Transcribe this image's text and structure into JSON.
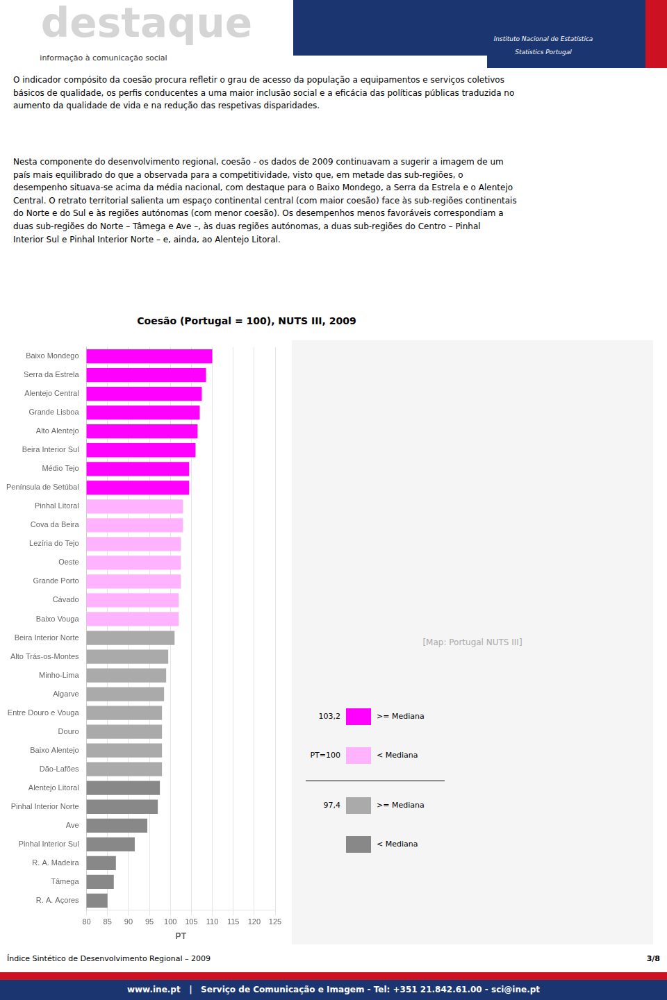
{
  "chart_data": {
    "type": "bar",
    "orientation": "horizontal",
    "title": "Coesão (Portugal = 100), NUTS III, 2009",
    "xlabel": "PT",
    "xlim": [
      80,
      125
    ],
    "xticks": [
      80,
      85,
      90,
      95,
      100,
      105,
      110,
      115,
      120,
      125
    ],
    "grid": true,
    "categories": [
      "Baixo Mondego",
      "Serra da Estrela",
      "Alentejo Central",
      "Grande Lisboa",
      "Alto Alentejo",
      "Beira Interior Sul",
      "Médio Tejo",
      "Península de Setúbal",
      "Pinhal Litoral",
      "Cova da Beira",
      "Lezíria do Tejo",
      "Oeste",
      "Grande Porto",
      "Cávado",
      "Baixo Vouga",
      "Beira Interior Norte",
      "Alto Trás-os-Montes",
      "Minho-Lima",
      "Algarve",
      "Entre Douro e Vouga",
      "Douro",
      "Baixo Alentejo",
      "Dão-Lafões",
      "Alentejo Litoral",
      "Pinhal Interior Norte",
      "Ave",
      "Pinhal Interior Sul",
      "R. A. Madeira",
      "Tâmega",
      "R. A. Açores"
    ],
    "values": [
      110.0,
      108.5,
      107.5,
      107.0,
      106.5,
      106.0,
      104.5,
      104.5,
      103.0,
      103.0,
      102.5,
      102.5,
      102.5,
      102.0,
      102.0,
      101.0,
      99.5,
      99.0,
      98.5,
      98.0,
      98.0,
      98.0,
      98.0,
      97.5,
      97.0,
      94.5,
      91.5,
      87.0,
      86.5,
      85.0
    ],
    "colors": [
      "#FF00FF",
      "#FF00FF",
      "#FF00FF",
      "#FF00FF",
      "#FF00FF",
      "#FF00FF",
      "#FF00FF",
      "#FF00FF",
      "#FFB3FF",
      "#FFB3FF",
      "#FFB3FF",
      "#FFB3FF",
      "#FFB3FF",
      "#FFB3FF",
      "#FFB3FF",
      "#AAAAAA",
      "#AAAAAA",
      "#AAAAAA",
      "#AAAAAA",
      "#AAAAAA",
      "#AAAAAA",
      "#AAAAAA",
      "#AAAAAA",
      "#888888",
      "#888888",
      "#888888",
      "#888888",
      "#888888",
      "#888888",
      "#888888"
    ],
    "annotations": [
      "destaque",
      "informação à comunicação social",
      "Instituto Nacional de Estatística",
      "Statistics Portugal",
      "O indicador compósito da coesão procura refletir o grau de acesso da população a equipamentos e serviços coletivos\nbásicos de qualidade, os perfis conducentes a uma maior inclusão social e a eficácia das políticas públicas traduzida no\naumento da qualidade de vida e na redução das respetivas disparidades.",
      "Nesta componente do desenvolvimento regional, coesão - os dados de 2009 continuavam a sugerir a imagem de um\npaís mais equilibrado do que a observada para a competitividade, visto que, em metade das sub-regiões, o\ndesempenho situava-se acima da média nacional, com destaque para o Baixo Mondego, a Serra da Estrela e o Alentejo\nCentral. O retrato territorial salienta um espaço continental central (com maior coesão) face às sub-regiões continentais\ndo Norte e do Sul e às regiões autónomas (com menor coesão). Os desempenhos menos favoráveis correspondiam a\nduas sub-regiões do Norte – Tâmega e Ave –, às duas regiões autónomas, a duas sub-regiões do Centro – Pinhal\nInterior Sul e Pinhal Interior Norte – e, ainda, ao Alentejo Litoral.",
      "103,2",
      "PT=100",
      "97,4",
      ">= Mediana",
      "< Mediana",
      ">= Mediana",
      "< Mediana",
      "[Map: Portugal NUTS III]",
      "Índice Sintético de Desenvolvimento Regional – 2009",
      "3/8",
      "www.ine.pt   |   Serviço de Comunicação e Imagem - Tel: +351 21.842.61.00 - sci@ine.pt"
    ]
  }
}
